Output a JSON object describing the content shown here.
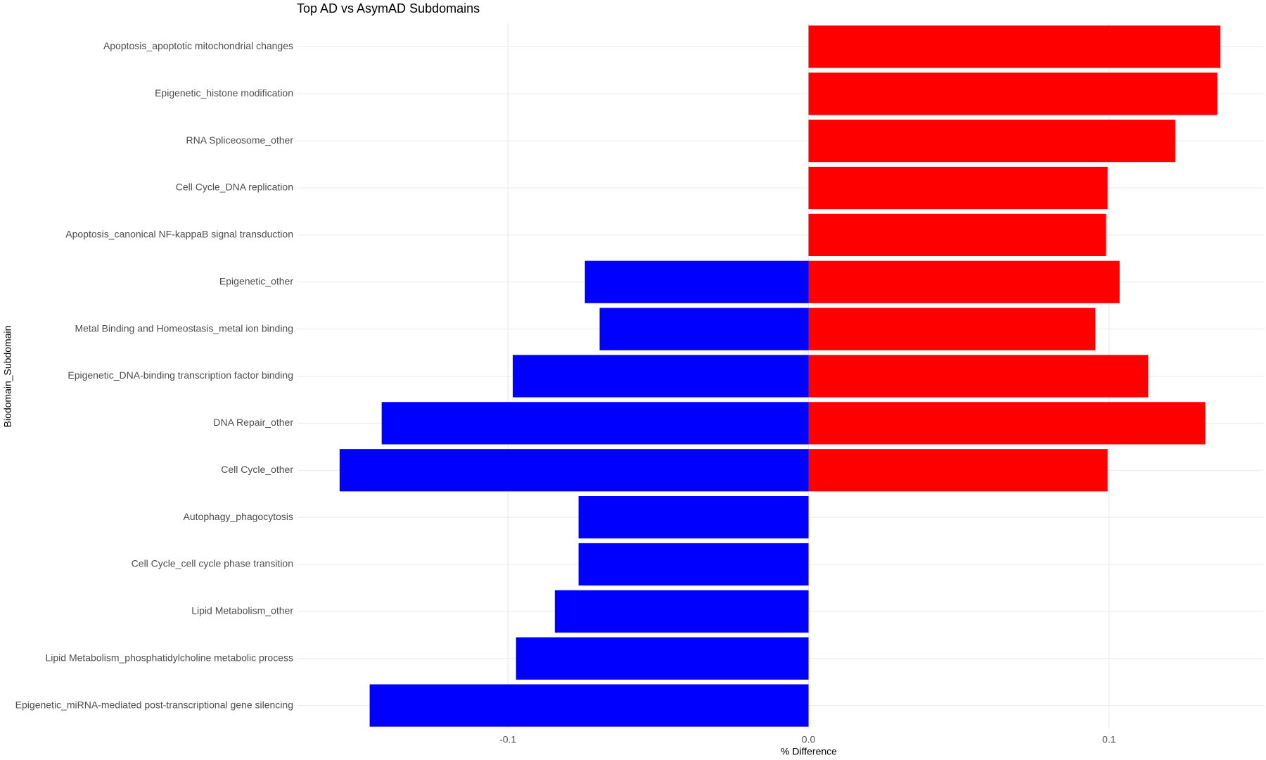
{
  "chart_data": {
    "type": "bar",
    "orientation": "horizontal",
    "title": "Top AD vs AsymAD Subdomains",
    "x_label": "% Difference",
    "y_label": "Biodomain_Subdomain",
    "categories": [
      "Apoptosis_apoptotic mitochondrial changes",
      "Epigenetic_histone modification",
      "RNA Spliceosome_other",
      "Cell Cycle_DNA replication",
      "Apoptosis_canonical NF-kappaB signal transduction",
      "Epigenetic_other",
      "Metal Binding and Homeostasis_metal ion binding",
      "Epigenetic_DNA-binding transcription factor binding",
      "DNA Repair_other",
      "Cell Cycle_other",
      "Autophagy_phagocytosis",
      "Cell Cycle_cell cycle phase transition",
      "Lipid Metabolism_other",
      "Lipid Metabolism_phosphatidylcholine metabolic process",
      "Epigenetic_miRNA-mediated post-transcriptional gene silencing"
    ],
    "series": [
      {
        "color": "#ff0000",
        "values": [
          0.137,
          0.136,
          0.122,
          0.0995,
          0.099,
          0.1035,
          0.0954,
          0.113,
          0.132,
          0.0995,
          null,
          null,
          null,
          null,
          null
        ]
      },
      {
        "color": "#0000ff",
        "values": [
          null,
          null,
          null,
          null,
          null,
          -0.0744,
          -0.0695,
          -0.0984,
          -0.142,
          -0.156,
          -0.0765,
          -0.0765,
          -0.0844,
          -0.0973,
          -0.146
        ]
      }
    ],
    "xlim": [
      -0.17,
      0.1515
    ],
    "xticks": [
      -0.1,
      {
        "value": 0,
        "label": "0.0"
      },
      0.1
    ],
    "grid": true
  }
}
